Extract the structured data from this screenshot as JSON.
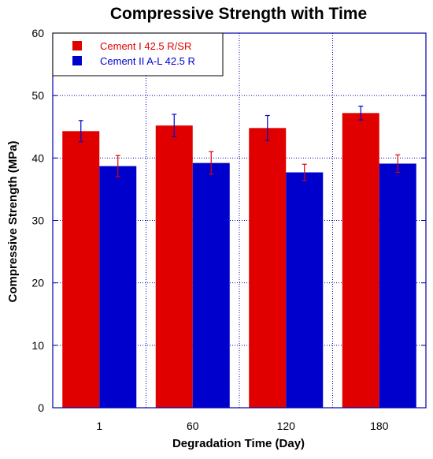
{
  "chart_data": {
    "type": "bar",
    "title": "Compressive Strength with Time",
    "xlabel": "Degradation Time (Day)",
    "ylabel": "Compressive Strength (MPa)",
    "categories": [
      "1",
      "60",
      "120",
      "180"
    ],
    "ylim": [
      0,
      60
    ],
    "yticks": [
      0,
      10,
      20,
      30,
      40,
      50,
      60
    ],
    "grid": "dotted",
    "legend_position": "top-left",
    "series": [
      {
        "name": "Cement I 42.5 R/SR",
        "color": "#e00000",
        "error_color": "#0000cc",
        "values": [
          44.3,
          45.2,
          44.8,
          47.2
        ],
        "errors": [
          1.7,
          1.8,
          2.0,
          1.1
        ]
      },
      {
        "name": "Cement II A-L 42.5 R",
        "color": "#0000cc",
        "error_color": "#e00000",
        "values": [
          38.7,
          39.2,
          37.7,
          39.1
        ],
        "errors": [
          1.7,
          1.8,
          1.3,
          1.4
        ]
      }
    ]
  }
}
